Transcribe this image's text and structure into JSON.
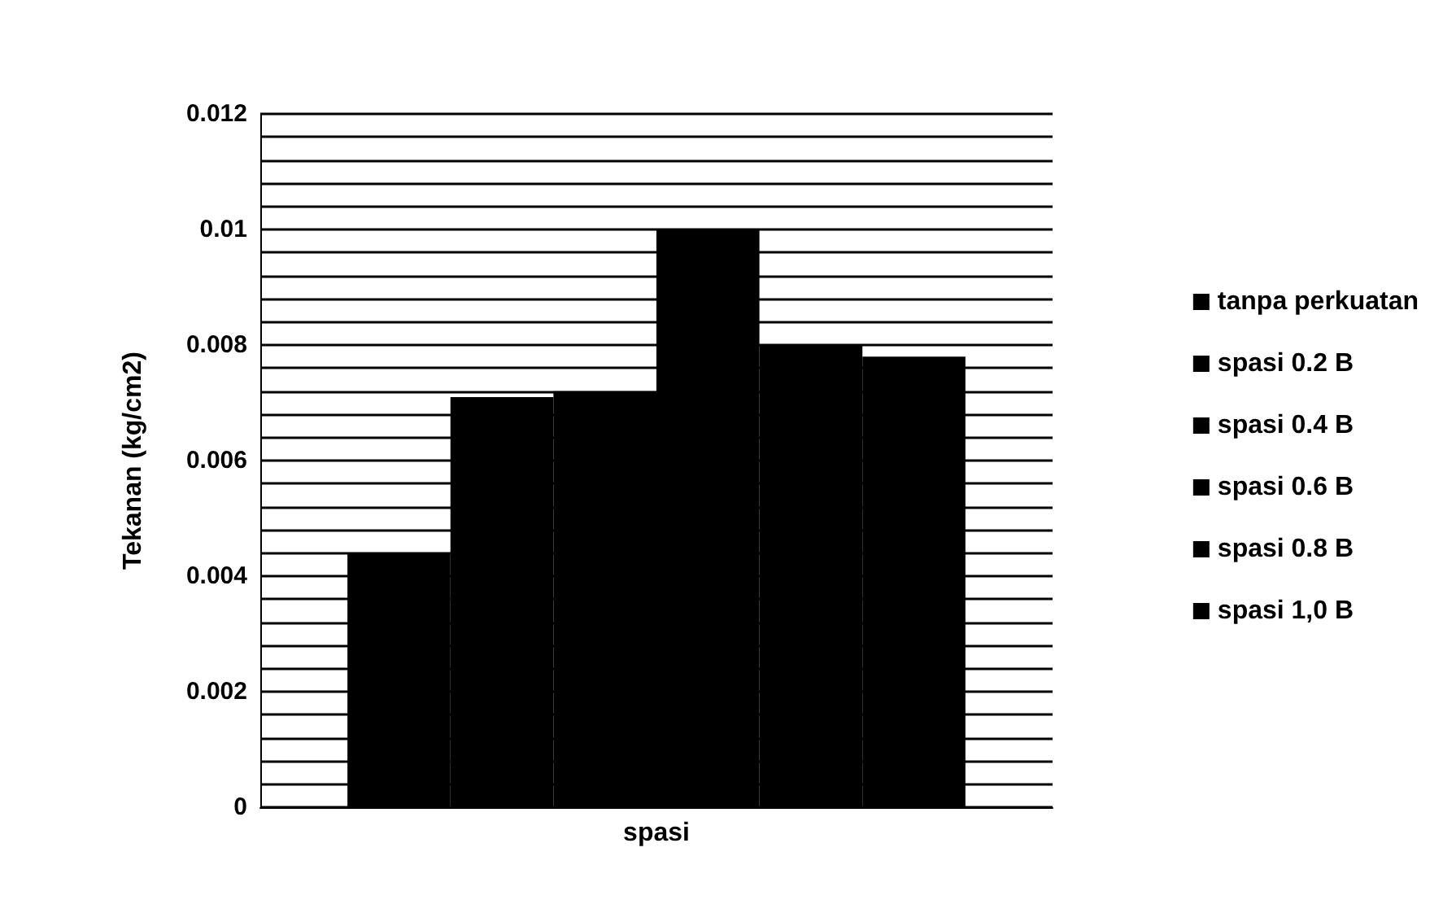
{
  "chart_data": {
    "type": "bar",
    "ylabel": "Tekanan (kg/cm2)",
    "categories": [
      "spasi"
    ],
    "series": [
      {
        "name": "tanpa perkuatan",
        "color": "#000000",
        "values": [
          0.0044
        ]
      },
      {
        "name": "spasi 0.2 B",
        "color": "#000000",
        "values": [
          0.0071
        ]
      },
      {
        "name": "spasi 0.4 B",
        "color": "#000000",
        "values": [
          0.0072
        ]
      },
      {
        "name": "spasi 0.6 B",
        "color": "#000000",
        "values": [
          0.01
        ]
      },
      {
        "name": "spasi 0.8 B",
        "color": "#000000",
        "values": [
          0.008
        ]
      },
      {
        "name": "spasi 1,0 B",
        "color": "#000000",
        "values": [
          0.0078
        ]
      }
    ],
    "ylim": [
      0,
      0.012
    ],
    "yticks": [
      0,
      {
        "value": 0.0004,
        "label": null
      },
      {
        "value": 0.0008,
        "label": null
      },
      {
        "value": 0.0012,
        "label": null
      },
      {
        "value": 0.0016,
        "label": null
      },
      0.002,
      {
        "value": 0.0024,
        "label": null
      },
      {
        "value": 0.0028,
        "label": null
      },
      {
        "value": 0.0032,
        "label": null
      },
      {
        "value": 0.0036,
        "label": null
      },
      0.004,
      {
        "value": 0.0044,
        "label": null
      },
      {
        "value": 0.0048,
        "label": null
      },
      {
        "value": 0.0052,
        "label": null
      },
      {
        "value": 0.0056,
        "label": null
      },
      0.006,
      {
        "value": 0.0064,
        "label": null
      },
      {
        "value": 0.0068,
        "label": null
      },
      {
        "value": 0.0072,
        "label": null
      },
      {
        "value": 0.0076,
        "label": null
      },
      0.008,
      {
        "value": 0.0084,
        "label": null
      },
      {
        "value": 0.0088,
        "label": null
      },
      {
        "value": 0.0092,
        "label": null
      },
      {
        "value": 0.0096,
        "label": null
      },
      0.01,
      {
        "value": 0.0104,
        "label": null
      },
      {
        "value": 0.0108,
        "label": null
      },
      {
        "value": 0.0112,
        "label": null
      },
      {
        "value": 0.0116,
        "label": null
      },
      0.012
    ],
    "grid": "y",
    "legend": "right"
  }
}
